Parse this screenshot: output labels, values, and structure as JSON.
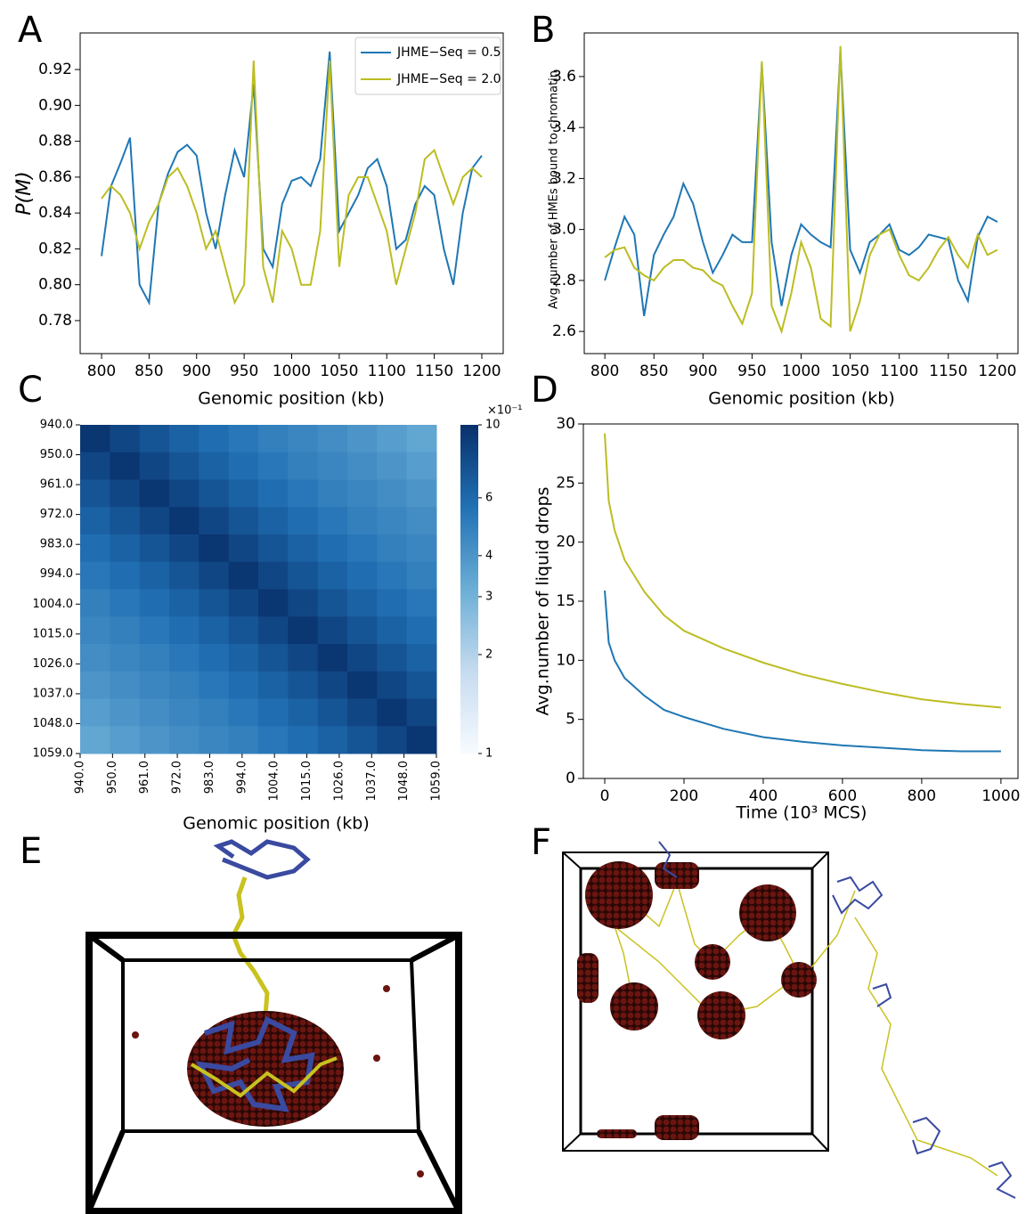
{
  "panel_labels": [
    "A",
    "B",
    "C",
    "D",
    "E",
    "F"
  ],
  "chart_data": [
    {
      "type": "line",
      "xlabel": "Genomic position (kb)",
      "ylabel": "P(M)",
      "x": [
        800,
        810,
        820,
        830,
        840,
        850,
        860,
        870,
        880,
        890,
        900,
        910,
        920,
        930,
        940,
        950,
        960,
        970,
        980,
        990,
        1000,
        1010,
        1020,
        1030,
        1040,
        1050,
        1060,
        1070,
        1080,
        1090,
        1100,
        1110,
        1120,
        1130,
        1140,
        1150,
        1160,
        1170,
        1180,
        1190,
        1200
      ],
      "xlim": [
        777.5,
        1222.5
      ],
      "xticks": [
        800,
        850,
        900,
        950,
        1000,
        1050,
        1100,
        1150,
        1200
      ],
      "ylim": [
        0.7616,
        0.9404
      ],
      "yticks": [
        0.78,
        {
          "value": 0.8,
          "label": "0.80"
        },
        0.82,
        0.84,
        0.86,
        0.88,
        {
          "value": 0.9,
          "label": "0.90"
        },
        0.92
      ],
      "legend": "upper right",
      "series": [
        {
          "name": "JHME−Seq = 0.5",
          "color": "#1f77b4",
          "values": [
            0.816,
            0.855,
            0.868,
            0.882,
            0.8,
            0.79,
            0.845,
            0.862,
            0.874,
            0.878,
            0.872,
            0.84,
            0.82,
            0.85,
            0.875,
            0.86,
            0.912,
            0.82,
            0.81,
            0.845,
            0.858,
            0.86,
            0.855,
            0.87,
            0.93,
            0.83,
            0.84,
            0.85,
            0.865,
            0.87,
            0.855,
            0.82,
            0.825,
            0.845,
            0.855,
            0.85,
            0.82,
            0.8,
            0.84,
            0.865,
            0.872
          ]
        },
        {
          "name": "JHME−Seq = 2.0",
          "color": "#bcbd22",
          "values": [
            0.848,
            0.855,
            0.85,
            0.84,
            0.82,
            0.835,
            0.845,
            0.86,
            0.865,
            0.855,
            0.84,
            0.82,
            0.83,
            0.81,
            0.79,
            0.8,
            0.925,
            0.81,
            0.79,
            0.83,
            0.82,
            0.8,
            0.8,
            0.83,
            0.925,
            0.81,
            0.85,
            0.86,
            0.86,
            0.845,
            0.83,
            0.8,
            0.82,
            0.84,
            0.87,
            0.875,
            0.86,
            0.845,
            0.86,
            0.865,
            0.86
          ]
        }
      ]
    },
    {
      "type": "line",
      "xlabel": "Genomic position (kb)",
      "ylabel": "Avg.number of HMEs bound to chromatin",
      "x": [
        800,
        810,
        820,
        830,
        840,
        850,
        860,
        870,
        880,
        890,
        900,
        910,
        920,
        930,
        940,
        950,
        960,
        970,
        980,
        990,
        1000,
        1010,
        1020,
        1030,
        1040,
        1050,
        1060,
        1070,
        1080,
        1090,
        1100,
        1110,
        1120,
        1130,
        1140,
        1150,
        1160,
        1170,
        1180,
        1190,
        1200
      ],
      "xlim": [
        779,
        1221
      ],
      "xticks": [
        800,
        850,
        900,
        950,
        1000,
        1050,
        1100,
        1150,
        1200
      ],
      "ylim": [
        2.513,
        3.771
      ],
      "yticks": [
        2.6,
        2.8,
        {
          "value": 3,
          "label": "3.0"
        },
        3.2,
        3.4,
        3.6
      ],
      "series": [
        {
          "color": "#1f77b4",
          "values": [
            2.8,
            2.93,
            3.05,
            2.98,
            2.66,
            2.9,
            2.98,
            3.05,
            3.18,
            3.1,
            2.95,
            2.83,
            2.9,
            2.98,
            2.95,
            2.95,
            3.65,
            2.95,
            2.7,
            2.9,
            3.02,
            2.98,
            2.95,
            2.93,
            3.7,
            2.92,
            2.83,
            2.95,
            2.98,
            3.02,
            2.92,
            2.9,
            2.93,
            2.98,
            2.97,
            2.96,
            2.8,
            2.72,
            2.97,
            3.05,
            3.03
          ]
        },
        {
          "color": "#bcbd22",
          "values": [
            2.89,
            2.92,
            2.93,
            2.85,
            2.82,
            2.8,
            2.85,
            2.88,
            2.88,
            2.85,
            2.84,
            2.8,
            2.78,
            2.7,
            2.63,
            2.75,
            3.66,
            2.7,
            2.6,
            2.75,
            2.95,
            2.85,
            2.65,
            2.62,
            3.72,
            2.6,
            2.72,
            2.9,
            2.98,
            3.0,
            2.9,
            2.82,
            2.8,
            2.85,
            2.92,
            2.97,
            2.9,
            2.85,
            2.98,
            2.9,
            2.92
          ]
        }
      ]
    },
    {
      "type": "heatmap",
      "xlabel": "Genomic position (kb)",
      "categories": [
        "940.0",
        "950.0",
        "961.0",
        "972.0",
        "983.0",
        "994.0",
        "1004.0",
        "1015.0",
        "1026.0",
        "1037.0",
        "1048.0",
        "1059.0"
      ],
      "row_categories": [
        "940.0",
        "950.0",
        "961.0",
        "972.0",
        "983.0",
        "994.0",
        "1004.0",
        "1015.0",
        "1026.0",
        "1037.0",
        "1048.0",
        "1059.0"
      ],
      "values": [
        [
          9.5,
          8.2,
          7.2,
          6.4,
          5.8,
          5.3,
          4.9,
          4.6,
          4.3,
          4.0,
          3.7,
          3.4
        ],
        [
          8.2,
          9.5,
          8.2,
          7.2,
          6.4,
          5.8,
          5.3,
          4.9,
          4.6,
          4.3,
          4.0,
          3.7
        ],
        [
          7.2,
          8.2,
          9.5,
          8.2,
          7.2,
          6.4,
          5.8,
          5.3,
          4.9,
          4.6,
          4.3,
          4.0
        ],
        [
          6.4,
          7.2,
          8.2,
          9.5,
          8.2,
          7.2,
          6.4,
          5.8,
          5.3,
          4.9,
          4.6,
          4.3
        ],
        [
          5.8,
          6.4,
          7.2,
          8.2,
          9.5,
          8.2,
          7.2,
          6.4,
          5.8,
          5.3,
          4.9,
          4.6
        ],
        [
          5.3,
          5.8,
          6.4,
          7.2,
          8.2,
          9.5,
          8.2,
          7.2,
          6.4,
          5.8,
          5.3,
          4.9
        ],
        [
          4.9,
          5.3,
          5.8,
          6.4,
          7.2,
          8.2,
          9.5,
          8.2,
          7.2,
          6.4,
          5.8,
          5.3
        ],
        [
          4.6,
          4.9,
          5.3,
          5.8,
          6.4,
          7.2,
          8.2,
          9.5,
          8.2,
          7.2,
          6.4,
          5.8
        ],
        [
          4.3,
          4.6,
          4.9,
          5.3,
          5.8,
          6.4,
          7.2,
          8.2,
          9.5,
          8.2,
          7.2,
          6.4
        ],
        [
          4.0,
          4.3,
          4.6,
          4.9,
          5.3,
          5.8,
          6.4,
          7.2,
          8.2,
          9.5,
          8.2,
          7.2
        ],
        [
          3.7,
          4.0,
          4.3,
          4.6,
          4.9,
          5.3,
          5.8,
          6.4,
          7.2,
          8.2,
          9.5,
          8.2
        ],
        [
          3.4,
          3.7,
          4.0,
          4.3,
          4.6,
          4.9,
          5.3,
          5.8,
          6.4,
          7.2,
          8.2,
          9.5
        ]
      ],
      "colorscale": [
        "#f7fbff",
        "#c6dbef",
        "#6baed6",
        "#2171b5",
        "#08306b"
      ],
      "log_scale": true,
      "clim": [
        1,
        10
      ],
      "cticks": [
        1,
        2,
        3,
        4,
        6,
        10
      ],
      "colorbar_label": "×10⁻¹"
    },
    {
      "type": "line",
      "xlabel": "Time (10³ MCS)",
      "ylabel": "Avg.number of liquid drops",
      "x": [
        0,
        10,
        25,
        50,
        100,
        150,
        200,
        300,
        400,
        500,
        600,
        700,
        800,
        900,
        1000
      ],
      "xlim": [
        -54,
        1043
      ],
      "xticks": [
        0,
        200,
        400,
        600,
        800,
        1000
      ],
      "ylim": [
        0,
        30
      ],
      "yticks": [
        0,
        5,
        10,
        15,
        20,
        25,
        30
      ],
      "series": [
        {
          "color": "#bcbd22",
          "values": [
            29.2,
            23.5,
            21,
            18.5,
            15.8,
            13.8,
            12.5,
            11,
            9.8,
            8.8,
            8,
            7.3,
            6.7,
            6.3,
            6.0
          ]
        },
        {
          "color": "#1f77b4",
          "values": [
            15.9,
            11.5,
            10,
            8.5,
            7,
            5.8,
            5.2,
            4.2,
            3.5,
            3.1,
            2.8,
            2.6,
            2.4,
            2.3,
            2.3
          ]
        }
      ]
    }
  ]
}
